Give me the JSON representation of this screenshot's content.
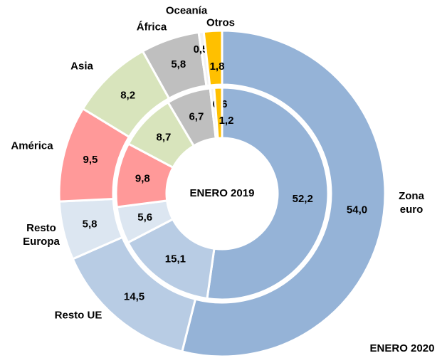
{
  "chart_data": {
    "type": "donut",
    "categories": [
      "Zona euro",
      "Resto UE",
      "Resto Europa",
      "América",
      "Asia",
      "África",
      "Oceanía",
      "Otros"
    ],
    "colors": [
      "#95b3d7",
      "#b8cce4",
      "#dce6f1",
      "#ff9999",
      "#d8e4bc",
      "#bfbfbf",
      "#f2f2f2",
      "#ffc000"
    ],
    "series": [
      {
        "name": "ENERO 2020",
        "values": [
          54.0,
          14.5,
          5.8,
          9.5,
          8.2,
          5.8,
          0.5,
          1.8
        ],
        "value_labels": [
          "54,0",
          "14,5",
          "5,8",
          "9,5",
          "8,2",
          "5,8",
          "0,5",
          "1,8"
        ]
      },
      {
        "name": "ENERO 2019",
        "values": [
          52.2,
          15.1,
          5.6,
          9.8,
          8.7,
          6.7,
          0.6,
          1.2
        ],
        "value_labels": [
          "52,2",
          "15,1",
          "5,6",
          "9,8",
          "8,7",
          "6,7",
          "0,6",
          "1,2"
        ]
      }
    ]
  }
}
